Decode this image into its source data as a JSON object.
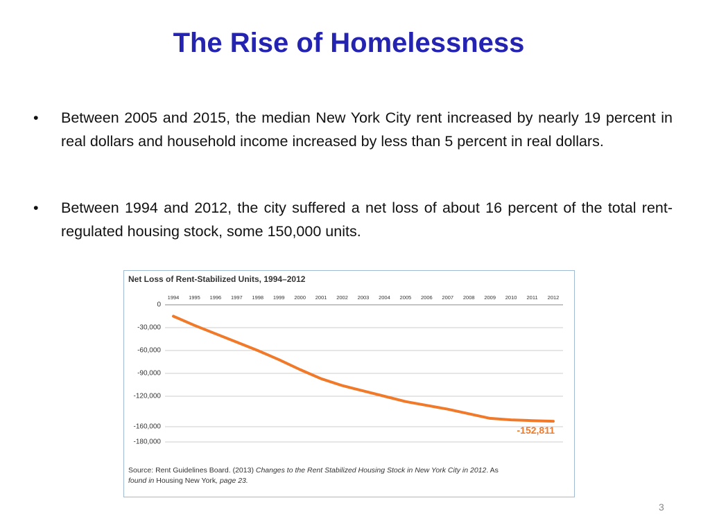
{
  "title": "The Rise of Homelessness",
  "bullets": [
    "Between 2005 and 2015, the median New York City rent increased by nearly 19 percent in real dollars and household income increased by less than 5 percent in real dollars.",
    "Between 1994 and 2012, the city suffered a net loss of about 16 percent of the total rent-regulated housing stock, some 150,000 units."
  ],
  "chart_data": {
    "type": "line",
    "title": "Net Loss of Rent-Stabilized Units, 1994–2012",
    "categories": [
      "1994",
      "1995",
      "1996",
      "1997",
      "1998",
      "1999",
      "2000",
      "2001",
      "2002",
      "2003",
      "2004",
      "2005",
      "2006",
      "2007",
      "2008",
      "2009",
      "2010",
      "2011",
      "2012"
    ],
    "values": [
      -15000,
      -27000,
      -38000,
      -49000,
      -60000,
      -72000,
      -85000,
      -97000,
      -106000,
      -113000,
      -120000,
      -127000,
      -132000,
      -137000,
      -143000,
      -149000,
      -151000,
      -152000,
      -152811
    ],
    "value_labels": [
      null,
      null,
      null,
      null,
      null,
      null,
      null,
      null,
      null,
      null,
      null,
      null,
      null,
      null,
      null,
      null,
      null,
      null,
      "-152,811"
    ],
    "color": "#f07a2a",
    "ylim": [
      -180000,
      0
    ],
    "yticks": [
      0,
      {
        "value": -30000,
        "label": "-30,000"
      },
      {
        "value": -60000,
        "label": "-60,000"
      },
      {
        "value": -90000,
        "label": "-90,000"
      },
      {
        "value": -120000,
        "label": "-120,000"
      },
      {
        "value": -160000,
        "label": "-160,000"
      },
      {
        "value": -180000,
        "label": "-180,000"
      }
    ],
    "grid": true,
    "source": [
      "Source: Rent Guidelines Board. (2013) ",
      "Changes to the Rent Stabilized Housing Stock in New York City in 2012",
      ". As",
      "found in ",
      "Housing New York",
      ", page 23."
    ]
  },
  "page_number": "3"
}
